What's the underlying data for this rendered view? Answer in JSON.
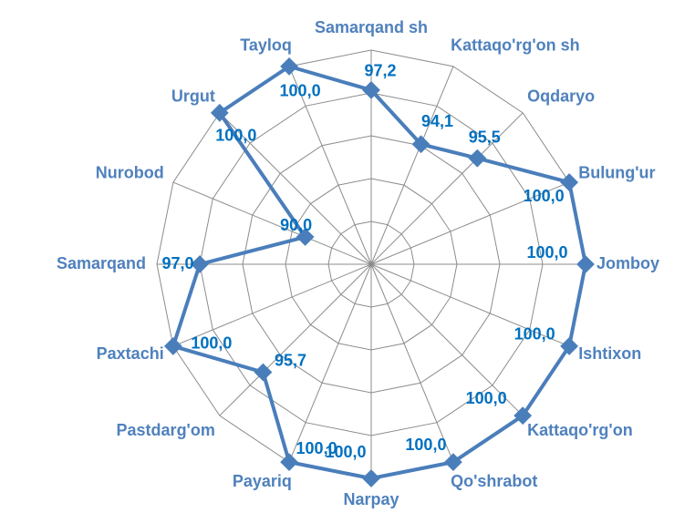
{
  "chart_data": {
    "type": "radar",
    "categories": [
      "Samarqand sh",
      "Kattaqo'rg'on sh",
      "Oqdaryo",
      "Bulung'ur",
      "Jomboy",
      "Ishtixon",
      "Kattaqo'rg'on",
      "Qo'shrabot",
      "Narpay",
      "Payariq",
      "Pastdarg'om",
      "Paxtachi",
      "Samarqand",
      "Nurobod",
      "Urgut",
      "Tayloq"
    ],
    "values": [
      97.2,
      94.1,
      95.5,
      100.0,
      100.0,
      100.0,
      100.0,
      100.0,
      100.0,
      100.0,
      95.7,
      100.0,
      97.0,
      90.0,
      100.0,
      100.0
    ],
    "value_labels": [
      "97,2",
      "94,1",
      "95,5",
      "100,0",
      "100,0",
      "100,0",
      "100,0",
      "100,0",
      "100,0",
      "100,0",
      "95,7",
      "100,0",
      "97,0",
      "90,0",
      "100,0",
      "100,0"
    ],
    "color": "#4a7ebb",
    "ylim": [
      85,
      100
    ],
    "yticks": [
      85,
      88,
      91,
      94,
      97,
      100
    ],
    "grid": true
  }
}
